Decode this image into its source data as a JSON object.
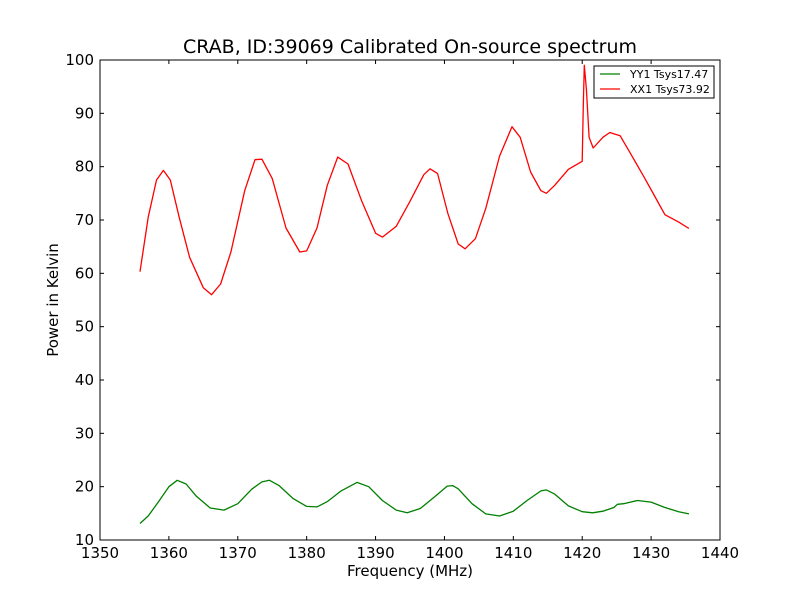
{
  "chart_data": {
    "type": "line",
    "title": "CRAB, ID:39069 Calibrated On-source spectrum",
    "xlabel": "Frequency (MHz)",
    "ylabel": "Power in Kelvin",
    "xlim": [
      1350,
      1440
    ],
    "ylim": [
      10,
      100
    ],
    "xticks": [
      1350,
      1360,
      1370,
      1380,
      1390,
      1400,
      1410,
      1420,
      1430,
      1440
    ],
    "yticks": [
      10,
      20,
      30,
      40,
      50,
      60,
      70,
      80,
      90,
      100
    ],
    "grid": false,
    "legend_position": "top-right",
    "series": [
      {
        "name": "YY1 Tsys17.47",
        "color": "#008000",
        "x": [
          1355.8,
          1357,
          1358.5,
          1360,
          1361.2,
          1362.5,
          1364,
          1366,
          1368,
          1370,
          1372,
          1373.5,
          1374.6,
          1376,
          1378,
          1380,
          1381.5,
          1383,
          1385,
          1387.3,
          1389,
          1391,
          1393,
          1394.6,
          1396.5,
          1398.5,
          1400.4,
          1401.2,
          1402,
          1404,
          1406,
          1408,
          1410,
          1412,
          1414,
          1414.8,
          1416,
          1418,
          1420,
          1421.5,
          1423,
          1424.6,
          1425.1,
          1426,
          1428,
          1430,
          1432,
          1434,
          1435.5
        ],
        "y": [
          13.1,
          14.5,
          17.2,
          20,
          21.2,
          20.5,
          18.2,
          16,
          15.6,
          16.8,
          19.5,
          20.9,
          21.2,
          20.2,
          17.8,
          16.3,
          16.2,
          17.2,
          19.2,
          20.8,
          20,
          17.4,
          15.6,
          15.1,
          15.9,
          18,
          20.1,
          20.2,
          19.6,
          16.8,
          14.9,
          14.5,
          15.4,
          17.4,
          19.2,
          19.4,
          18.6,
          16.4,
          15.3,
          15.1,
          15.4,
          16.1,
          16.7,
          16.8,
          17.4,
          17.1,
          16.1,
          15.3,
          14.9
        ]
      },
      {
        "name": "XX1 Tsys73.92",
        "color": "#ff0000",
        "x": [
          1355.8,
          1357,
          1358.2,
          1359.2,
          1360.2,
          1361.5,
          1363,
          1365,
          1366.2,
          1367.5,
          1369,
          1371,
          1372.5,
          1373.5,
          1375,
          1377,
          1379,
          1380,
          1381.5,
          1383,
          1384.5,
          1386,
          1388,
          1390,
          1391,
          1393,
          1395,
          1397,
          1397.9,
          1399,
          1400.5,
          1402,
          1403,
          1404.5,
          1406,
          1408,
          1409.8,
          1411,
          1412.5,
          1414,
          1414.8,
          1416,
          1418,
          1420,
          1420.15,
          1420.3,
          1420.6,
          1421,
          1421.6,
          1423,
          1424,
          1425.5,
          1427,
          1429,
          1430.5,
          1432,
          1434,
          1435.5
        ],
        "y": [
          60.3,
          70.5,
          77.5,
          79.3,
          77.5,
          70.5,
          63,
          57.3,
          56,
          58,
          64,
          75.5,
          81.3,
          81.4,
          77.8,
          68.5,
          64,
          64.2,
          68.5,
          76.5,
          81.8,
          80.5,
          73.5,
          67.5,
          66.8,
          68.8,
          73.5,
          78.5,
          79.6,
          78.7,
          71.2,
          65.5,
          64.6,
          66.5,
          72.2,
          82,
          87.5,
          85.5,
          79,
          75.5,
          75,
          76.5,
          79.5,
          81,
          91.5,
          99,
          94.5,
          85.5,
          83.5,
          85.5,
          86.4,
          85.8,
          82.5,
          78,
          74.5,
          71,
          69.6,
          68.4
        ]
      }
    ]
  }
}
